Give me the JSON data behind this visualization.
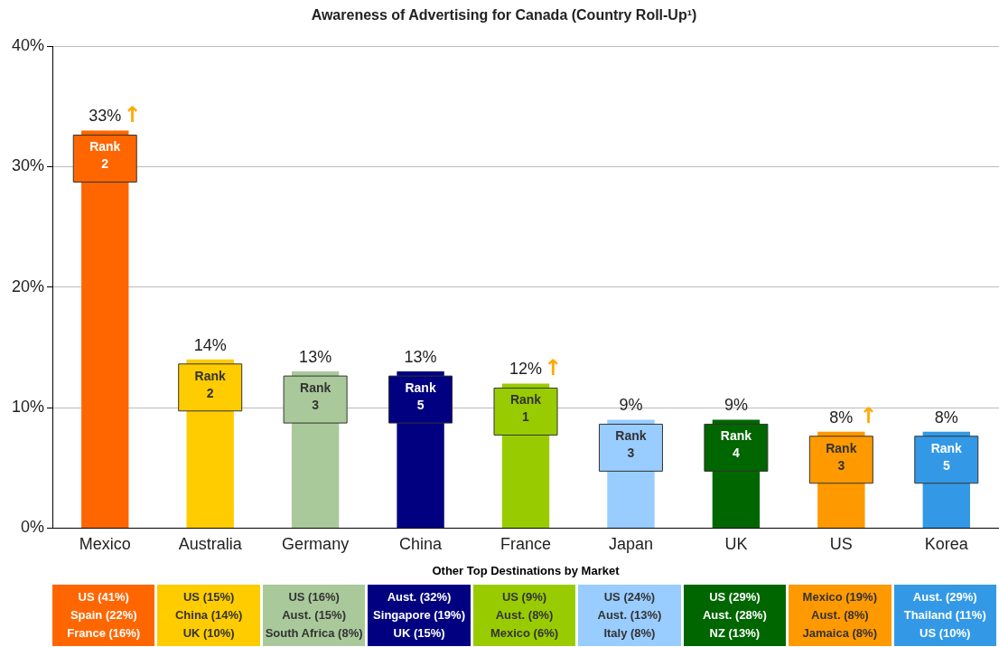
{
  "chart_data": {
    "type": "bar",
    "title": "Awareness of Advertising for Canada (Country Roll-Up¹)",
    "categories": [
      "Mexico",
      "Australia",
      "Germany",
      "China",
      "France",
      "Japan",
      "UK",
      "US",
      "Korea"
    ],
    "values": [
      33,
      14,
      13,
      13,
      12,
      9,
      9,
      8,
      8
    ],
    "colors": [
      "#ff6600",
      "#ffcc00",
      "#a9c99b",
      "#000080",
      "#99cc00",
      "#99ccff",
      "#006600",
      "#ff9900",
      "#3399e6"
    ],
    "value_labels": [
      "33%",
      "14%",
      "13%",
      "13%",
      "12%",
      "9%",
      "9%",
      "8%",
      "8%"
    ],
    "ylim": [
      0,
      40
    ],
    "yticks": [
      {
        "value": 0,
        "label": "0%"
      },
      {
        "value": 10,
        "label": "10%"
      },
      {
        "value": 20,
        "label": "20%"
      },
      {
        "value": 30,
        "label": "30%"
      },
      {
        "value": 40,
        "label": "40%"
      }
    ],
    "grid": "y",
    "legend": false,
    "annotations": [
      {
        "text": "Rank\n2",
        "x": "Mexico",
        "y": 33
      },
      {
        "text": "Rank\n2",
        "x": "Australia",
        "y": 14
      },
      {
        "text": "Rank\n3",
        "x": "Germany",
        "y": 13
      },
      {
        "text": "Rank\n5",
        "x": "China",
        "y": 13
      },
      {
        "text": "Rank\n1",
        "x": "France",
        "y": 12
      },
      {
        "text": "Rank\n3",
        "x": "Japan",
        "y": 9
      },
      {
        "text": "Rank\n4",
        "x": "UK",
        "y": 9
      },
      {
        "text": "Rank\n3",
        "x": "US",
        "y": 8
      },
      {
        "text": "Rank\n5",
        "x": "Korea",
        "y": 8
      },
      {
        "text": "↑",
        "x": "Mexico",
        "y": 33
      },
      {
        "text": "↑",
        "x": "France",
        "y": 12
      },
      {
        "text": "↑",
        "x": "US",
        "y": 8
      },
      "Other Top Destinations by Market",
      "US (41%)\nSpain (22%)\nFrance (16%)",
      "US (15%)\nChina (14%)\nUK (10%)",
      "US (16%)\nAust. (15%)\nSouth Africa (8%)",
      "Aust. (32%)\nSingapore (19%)\nUK (15%)",
      "US (9%)\nAust. (8%)\nMexico (6%)",
      "US (24%)\nAust. (13%)\nItaly (8%)",
      "US (29%)\nAust. (28%)\nNZ (13%)",
      "Mexico (19%)\nAust. (8%)\nJamaica (8%)",
      "Aust. (29%)\nThailand (11%)\nUS (10%)"
    ]
  }
}
